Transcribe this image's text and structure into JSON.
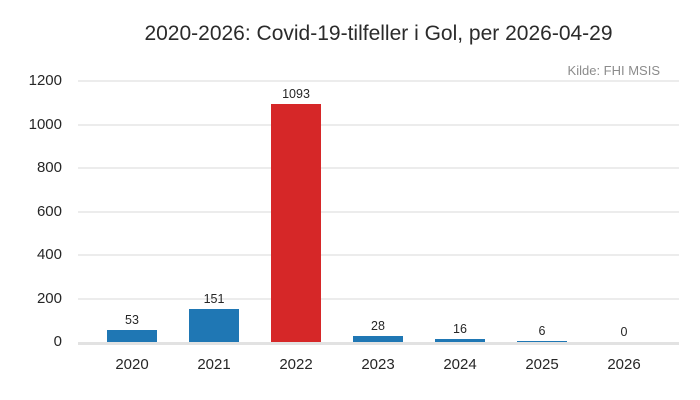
{
  "chart_data": {
    "type": "bar",
    "title": "2020-2026: Covid-19-tilfeller i Gol, per 2026-04-29",
    "source_annotation": "Kilde: FHI MSIS",
    "categories": [
      "2020",
      "2021",
      "2022",
      "2023",
      "2024",
      "2025",
      "2026"
    ],
    "values": [
      53,
      151,
      1093,
      28,
      16,
      6,
      0
    ],
    "bar_value_labels": [
      "53",
      "151",
      "1093",
      "28",
      "16",
      "6",
      "0"
    ],
    "highlight_category": "2022",
    "xlabel": "",
    "ylabel": "",
    "yticks": [
      0,
      200,
      400,
      600,
      800,
      1000,
      1200
    ],
    "ylim": [
      0,
      1200
    ],
    "grid": "horizontal",
    "legend": "none",
    "colors": {
      "bar_default": "#1f77b4",
      "bar_highlight": "#d62728",
      "gridline": "#ececec",
      "baseline": "#e2e2e2",
      "tick_text": "#262626",
      "title_text": "#2b2b2b",
      "source_text": "#8c8c8c",
      "background": "#ffffff"
    }
  }
}
